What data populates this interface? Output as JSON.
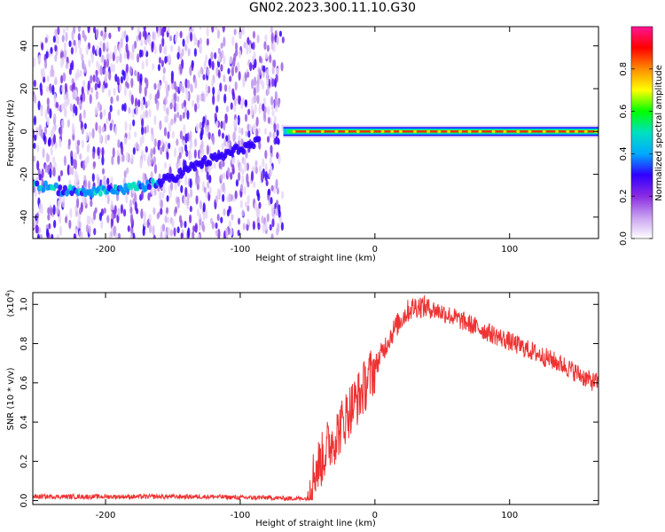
{
  "title": "GN02.2023.300.11.10.G30",
  "chart_data": [
    {
      "type": "heatmap",
      "title": "",
      "xlabel": "Height of straight line (km)",
      "ylabel": "Frequency (Hz)",
      "xlim": [
        -254,
        166
      ],
      "ylim": [
        -50,
        49
      ],
      "xticks": [
        -200,
        -100,
        0,
        100
      ],
      "yticks": [
        -40,
        -20,
        0,
        20,
        40
      ],
      "colorbar": {
        "label": "Normalized spectral amplitude",
        "range": [
          0,
          1
        ],
        "ticks": [
          "0.0",
          "0.2",
          "0.4",
          "0.6",
          "0.8"
        ],
        "tick_values": [
          0.0,
          0.2,
          0.4,
          0.6,
          0.8
        ],
        "colormap": [
          "#ffffff",
          "#c8a0f0",
          "#8a2be2",
          "#3000ff",
          "#00aaff",
          "#00e0c0",
          "#00ff00",
          "#ffff00",
          "#ff8c00",
          "#ff0000",
          "#ff1493"
        ]
      },
      "features": {
        "noise_region_x": [
          -254,
          -68
        ],
        "signal_band_x": [
          -68,
          166
        ],
        "signal_band_freq_hz": 0,
        "low_branch": {
          "x": [
            -254,
            -235,
            -220,
            -205,
            -190,
            -175,
            -160,
            -145,
            -130,
            -115,
            -100,
            -85
          ],
          "freq_hz": [
            -25,
            -27,
            -28,
            -28,
            -28,
            -26,
            -24,
            -20,
            -15,
            -12,
            -8,
            -5
          ]
        }
      }
    },
    {
      "type": "line",
      "title": "",
      "xlabel": "Height of straight line (km)",
      "ylabel": "SNR (10 * v/v)",
      "yscale_label": "(x10",
      "yscale_exponent": "4",
      "xlim": [
        -254,
        166
      ],
      "ylim": [
        -0.02,
        1.06
      ],
      "xticks": [
        -200,
        -100,
        0,
        100
      ],
      "yticks": [
        "0.0",
        "0.2",
        "0.4",
        "0.6",
        "0.8",
        "1.0"
      ],
      "ytick_values": [
        0.0,
        0.2,
        0.4,
        0.6,
        0.8,
        1.0
      ],
      "series": [
        {
          "color": "#ee3333",
          "x": [
            -254,
            -240,
            -220,
            -200,
            -180,
            -160,
            -140,
            -120,
            -100,
            -80,
            -60,
            -50,
            -48,
            -45,
            -40,
            -35,
            -30,
            -25,
            -20,
            -15,
            -10,
            -5,
            0,
            5,
            10,
            15,
            20,
            25,
            30,
            35,
            40,
            50,
            60,
            70,
            80,
            90,
            100,
            110,
            120,
            130,
            140,
            150,
            160,
            166
          ],
          "values": [
            0.02,
            0.02,
            0.02,
            0.02,
            0.02,
            0.02,
            0.02,
            0.02,
            0.015,
            0.015,
            0.01,
            0.01,
            0.05,
            0.15,
            0.2,
            0.28,
            0.32,
            0.38,
            0.45,
            0.5,
            0.55,
            0.62,
            0.68,
            0.75,
            0.82,
            0.88,
            0.93,
            0.97,
            0.99,
            0.99,
            0.98,
            0.96,
            0.93,
            0.9,
            0.87,
            0.84,
            0.81,
            0.78,
            0.75,
            0.72,
            0.69,
            0.65,
            0.61,
            0.6
          ]
        }
      ]
    }
  ]
}
